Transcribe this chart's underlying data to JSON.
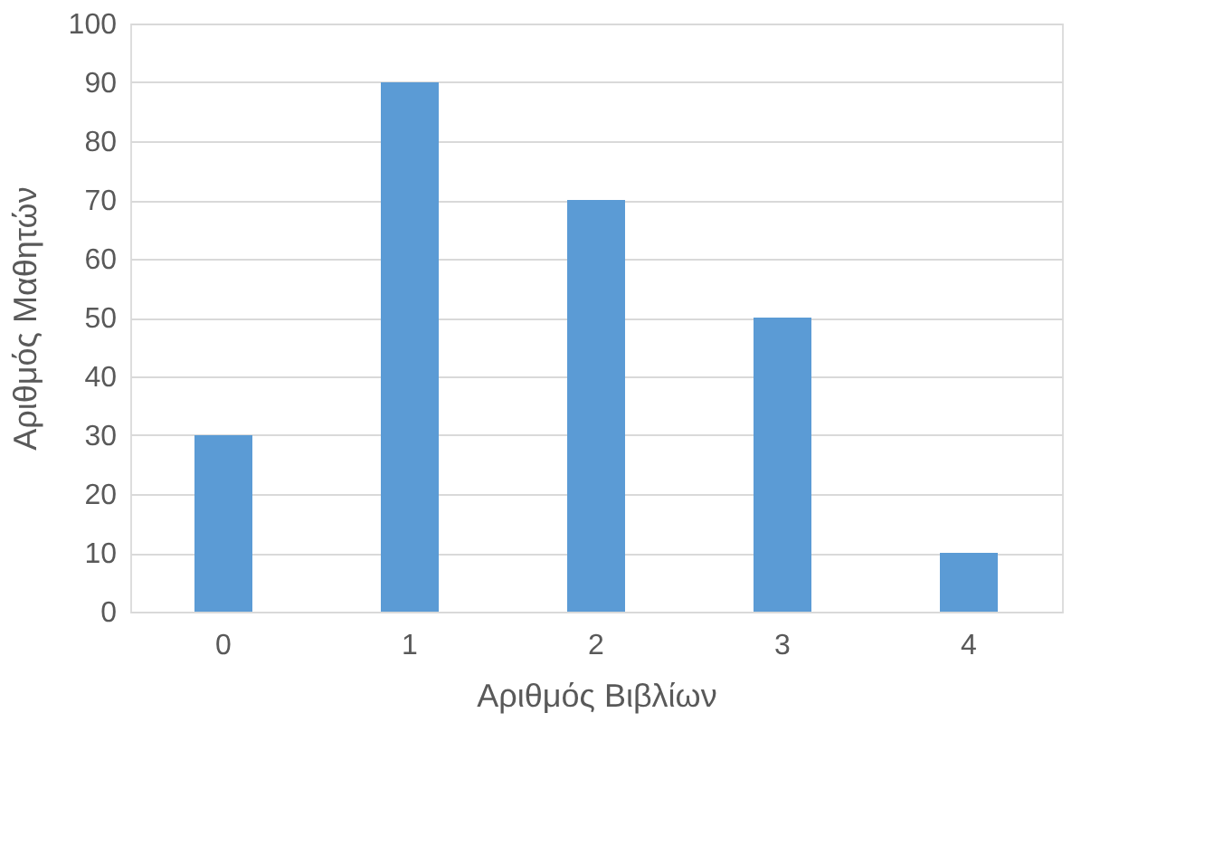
{
  "chart_data": {
    "type": "bar",
    "xlabel": "Αριθμός Βιβλίων",
    "ylabel": "Αριθμός Μαθητών",
    "categories": [
      "0",
      "1",
      "2",
      "3",
      "4"
    ],
    "values": [
      30,
      90,
      70,
      50,
      10
    ],
    "color": "#5b9bd5",
    "ylim": [
      0,
      100
    ],
    "yticks": [
      0,
      10,
      20,
      30,
      40,
      50,
      60,
      70,
      80,
      90,
      100
    ],
    "grid": "y"
  }
}
